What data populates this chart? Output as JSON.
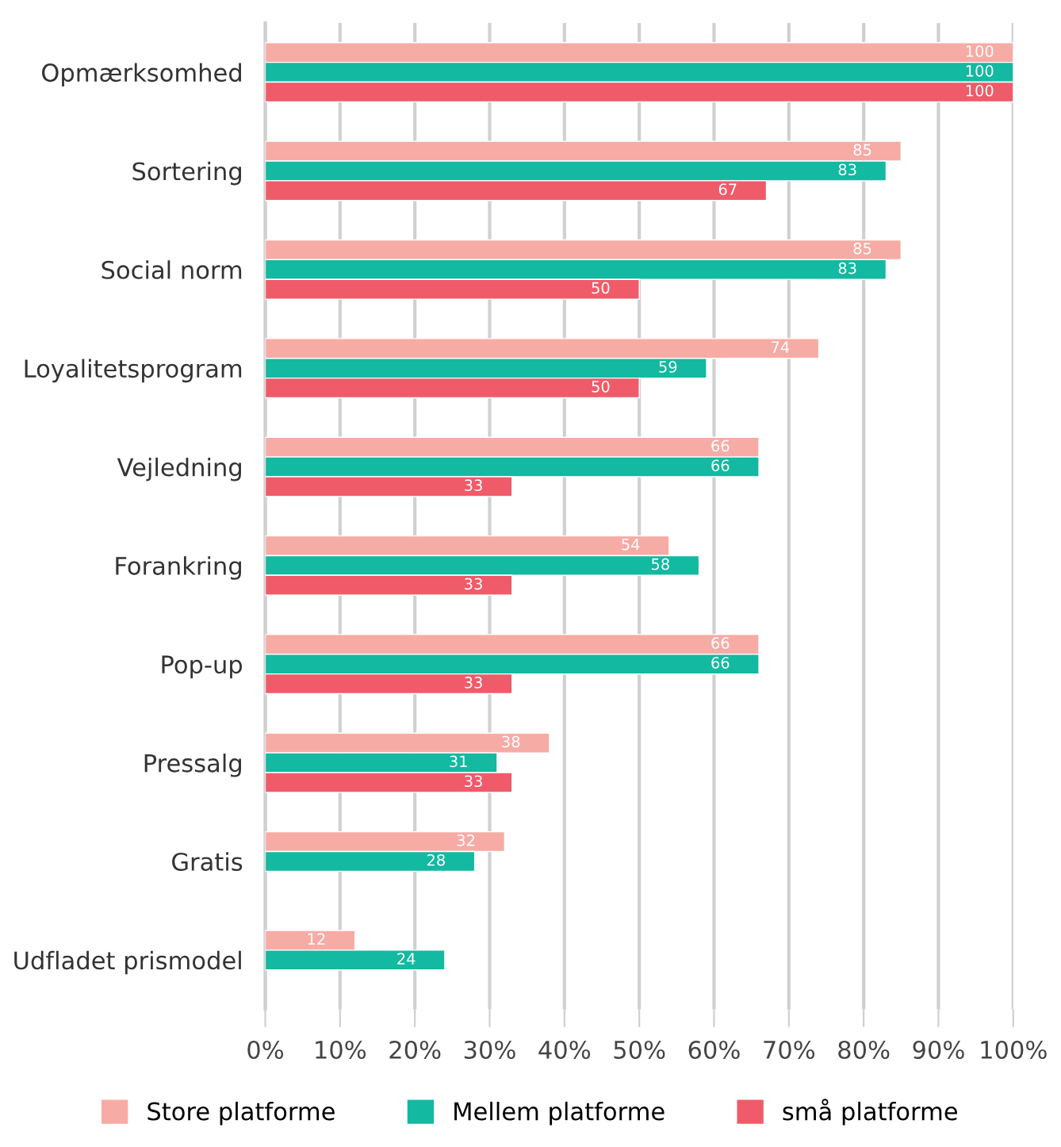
{
  "chart_data": {
    "type": "bar",
    "orientation": "horizontal",
    "categories": [
      "Opmærksomhed",
      "Sortering",
      "Social norm",
      "Loyalitetsprogram",
      "Vejledning",
      "Forankring",
      "Pop-up",
      "Pressalg",
      "Gratis",
      "Udfladet prismodel"
    ],
    "series": [
      {
        "name": "Store platforme",
        "color": "#f7aba5",
        "values": [
          100,
          85,
          85,
          74,
          66,
          54,
          66,
          38,
          32,
          12
        ],
        "value_labels": [
          "100",
          "85",
          "85",
          "74",
          "66",
          "54",
          "66",
          "38",
          "32",
          "12"
        ]
      },
      {
        "name": "Mellem platforme",
        "color": "#13b9a0",
        "values": [
          100,
          83,
          83,
          59,
          66,
          58,
          66,
          31,
          28,
          24
        ],
        "value_labels": [
          "100",
          "83",
          "83",
          "59",
          "66",
          "58",
          "66",
          "31",
          "28",
          "24"
        ]
      },
      {
        "name": "små platforme",
        "color": "#f05b69",
        "values": [
          100,
          67,
          50,
          50,
          33,
          33,
          33,
          33,
          null,
          null
        ],
        "value_labels": [
          "100",
          "67",
          "50",
          "50",
          "33",
          "33",
          "33",
          "33",
          null,
          null
        ]
      }
    ],
    "xlim": [
      0,
      100
    ],
    "xticks": [
      {
        "value": 0,
        "label": "0%"
      },
      {
        "value": 10,
        "label": "10%"
      },
      {
        "value": 20,
        "label": "20%"
      },
      {
        "value": 30,
        "label": "30%"
      },
      {
        "value": 40,
        "label": "40%"
      },
      {
        "value": 50,
        "label": "50%"
      },
      {
        "value": 60,
        "label": "60%"
      },
      {
        "value": 70,
        "label": "70%"
      },
      {
        "value": 80,
        "label": "80%"
      },
      {
        "value": 90,
        "label": "90%"
      },
      {
        "value": 100,
        "label": "100%"
      }
    ],
    "grid": "x",
    "legend": "bottom"
  }
}
